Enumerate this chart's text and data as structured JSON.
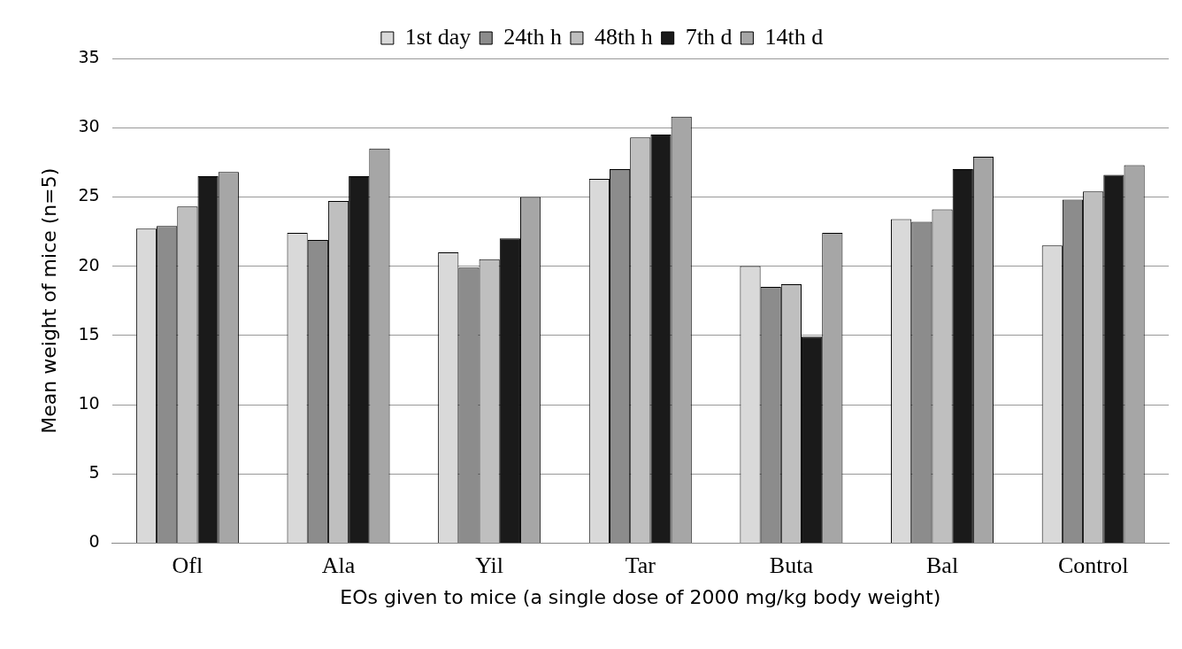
{
  "chart_data": {
    "type": "bar",
    "xlabel": "EOs given to mice (a single dose of 2000 mg/kg body weight)",
    "ylabel": "Mean weight of mice (n=5)",
    "categories": [
      "Ofl",
      "Ala",
      "Yil",
      "Tar",
      "Buta",
      "Bal",
      "Control"
    ],
    "series": [
      {
        "name": "1st day",
        "color": "#d9d9d9",
        "values": [
          22.7,
          22.4,
          21.0,
          26.3,
          20.0,
          23.4,
          21.5
        ]
      },
      {
        "name": "24th h",
        "color": "#8c8c8c",
        "values": [
          22.9,
          21.9,
          19.9,
          27.0,
          18.5,
          23.2,
          24.8
        ]
      },
      {
        "name": "48th h",
        "color": "#bfbfbf",
        "values": [
          24.3,
          24.7,
          20.5,
          29.3,
          18.7,
          24.1,
          25.4
        ]
      },
      {
        "name": "7th d",
        "color": "#1a1a1a",
        "values": [
          26.5,
          26.5,
          22.0,
          29.5,
          14.9,
          27.0,
          26.6
        ]
      },
      {
        "name": "14th d",
        "color": "#a6a6a6",
        "values": [
          26.8,
          28.5,
          25.0,
          30.8,
          22.4,
          27.9,
          27.3
        ]
      }
    ],
    "ylim": [
      0,
      35
    ],
    "yticks": [
      0,
      5,
      10,
      15,
      20,
      25,
      30,
      35
    ],
    "grid": "y",
    "legend": "top"
  }
}
